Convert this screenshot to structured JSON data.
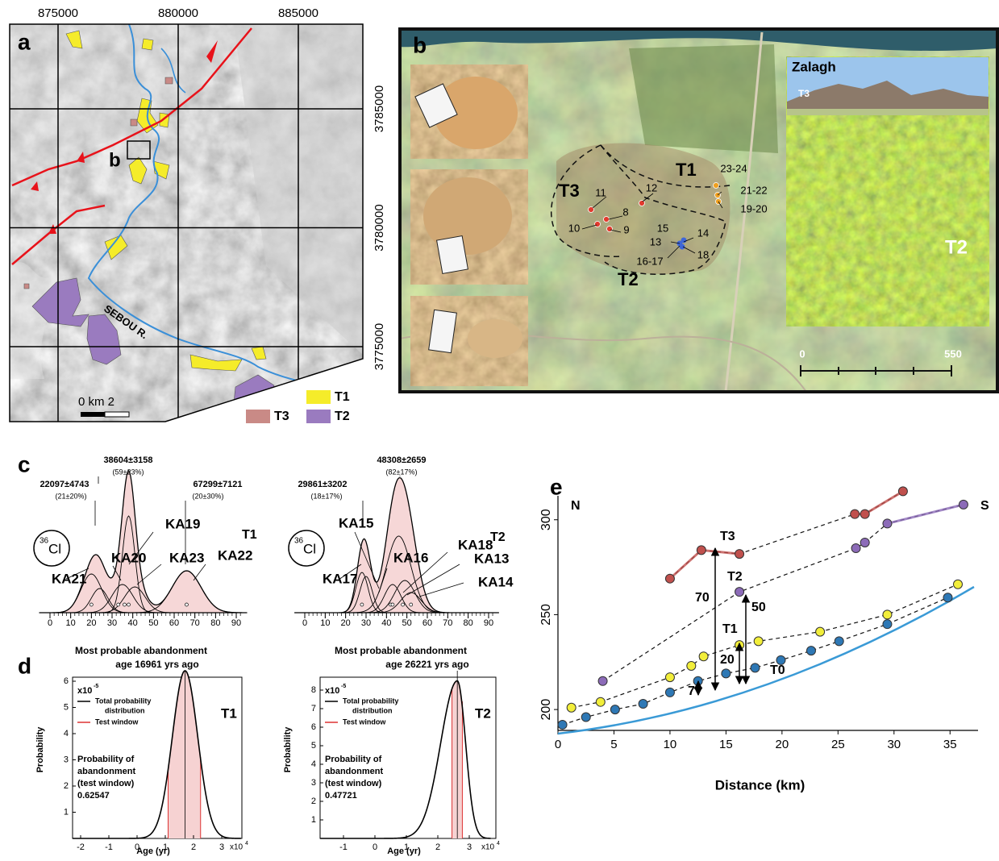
{
  "panel_a": {
    "label": "a",
    "easting_ticks": [
      875000,
      880000,
      885000
    ],
    "northing_ticks": [
      3785000,
      3780000,
      3775000
    ],
    "inset_label": "b",
    "river_label": "SEBOU R.",
    "scale_label": "0 km  2",
    "legend": [
      {
        "name": "T1",
        "color": "#f5ec2a"
      },
      {
        "name": "T3",
        "color": "#c98a86"
      },
      {
        "name": "T2",
        "color": "#9a7bbf"
      }
    ]
  },
  "panel_b": {
    "label": "b",
    "terraces": [
      "T1",
      "T3",
      "T2"
    ],
    "samples": [
      "11",
      "12",
      "8",
      "10",
      "9",
      "15",
      "14",
      "13",
      "18",
      "16-17",
      "23-24",
      "21-22",
      "19-20"
    ],
    "photo_title": "Zalagh",
    "photo_terraces": [
      "T3",
      "T2"
    ],
    "scale": [
      "0",
      "550"
    ]
  },
  "panel_c": {
    "label": "c",
    "isotope_mass": "36",
    "isotope": "Cl",
    "tick_values": [
      0,
      10,
      20,
      30,
      40,
      50,
      60,
      70,
      80,
      90
    ],
    "plots": [
      {
        "terrace": "T1",
        "peaks": [
          {
            "age": "38604±3158",
            "fraction": "(59±23%)"
          },
          {
            "age": "22097±4743",
            "fraction": "(21±20%)"
          },
          {
            "age": "67299±7121",
            "fraction": "(20±30%)"
          }
        ],
        "samples": [
          "KA19",
          "KA20",
          "KA23",
          "KA22",
          "KA21"
        ]
      },
      {
        "terrace": "T2",
        "peaks": [
          {
            "age": "48308±2659",
            "fraction": "(82±17%)"
          },
          {
            "age": "29861±3202",
            "fraction": "(18±17%)"
          }
        ],
        "samples": [
          "KA15",
          "KA18",
          "KA16",
          "KA13",
          "KA17",
          "KA14"
        ]
      }
    ]
  },
  "panel_d": {
    "label": "d",
    "y_label": "Probability",
    "x_label": "Age (yr)",
    "legend": [
      [
        "Total probability",
        "distribution"
      ],
      [
        "Test window"
      ]
    ],
    "note": [
      "Probability of",
      "abandonment",
      "(test window)"
    ],
    "plots": [
      {
        "title": [
          "Most probable abandonment",
          "age 16961 yrs ago"
        ],
        "terrace": "T1",
        "y_scale": {
          "base": "x10",
          "exponent": "-5"
        },
        "yticks": [
          1,
          2,
          3,
          4,
          5,
          6
        ],
        "xticks": [
          -2,
          -1,
          0,
          1,
          2,
          3
        ],
        "x_scale": {
          "base": "x10",
          "exponent": "4"
        },
        "probability": "0.62547"
      },
      {
        "title": [
          "Most probable abandonment",
          "age 26221 yrs ago"
        ],
        "terrace": "T2",
        "y_scale": {
          "base": "x10",
          "exponent": "-5"
        },
        "yticks": [
          1,
          2,
          3,
          4,
          5,
          6,
          7,
          8
        ],
        "xticks": [
          -1,
          0,
          1,
          2,
          3
        ],
        "x_scale": {
          "base": "x10",
          "exponent": "4"
        },
        "probability": "0.47721"
      }
    ]
  },
  "panel_e": {
    "label": "e",
    "type": "line",
    "x_label": "Distance (km)",
    "xlim": [
      0,
      37.5
    ],
    "xticks": [
      0,
      5,
      10,
      15,
      20,
      25,
      30,
      35
    ],
    "ylim": [
      189,
      319
    ],
    "yticks": [
      200,
      250,
      300
    ],
    "directions": [
      "N",
      "S"
    ],
    "offsets": [
      70,
      50,
      20,
      7
    ],
    "series": [
      {
        "name": "T3",
        "color": "#c0504d",
        "x": [
          10.0,
          12.8,
          16.2,
          26.5,
          27.4,
          30.8
        ],
        "y": [
          269,
          284,
          282,
          303,
          303,
          315
        ]
      },
      {
        "name": "T2",
        "color": "#8c6bb8",
        "x": [
          4.0,
          16.2,
          26.6,
          27.4,
          29.4,
          36.2
        ],
        "y": [
          215,
          262,
          285,
          288,
          298,
          308
        ]
      },
      {
        "name": "T1",
        "color": "#f2ee3a",
        "x": [
          1.2,
          3.8,
          10.0,
          11.9,
          13.0,
          16.2,
          17.9,
          23.4,
          29.4,
          35.7
        ],
        "y": [
          201,
          204,
          217,
          223,
          228,
          234,
          236,
          241,
          250,
          266
        ]
      },
      {
        "name": "T0",
        "color": "#2e78b5",
        "x": [
          0.4,
          2.5,
          5.1,
          7.6,
          10.0,
          12.5,
          15.0,
          17.6,
          19.9,
          22.6,
          25.1,
          29.4,
          34.8
        ],
        "y": [
          192,
          196,
          200,
          203,
          209,
          215,
          219,
          222,
          226,
          231,
          236,
          245,
          259
        ]
      }
    ]
  }
}
